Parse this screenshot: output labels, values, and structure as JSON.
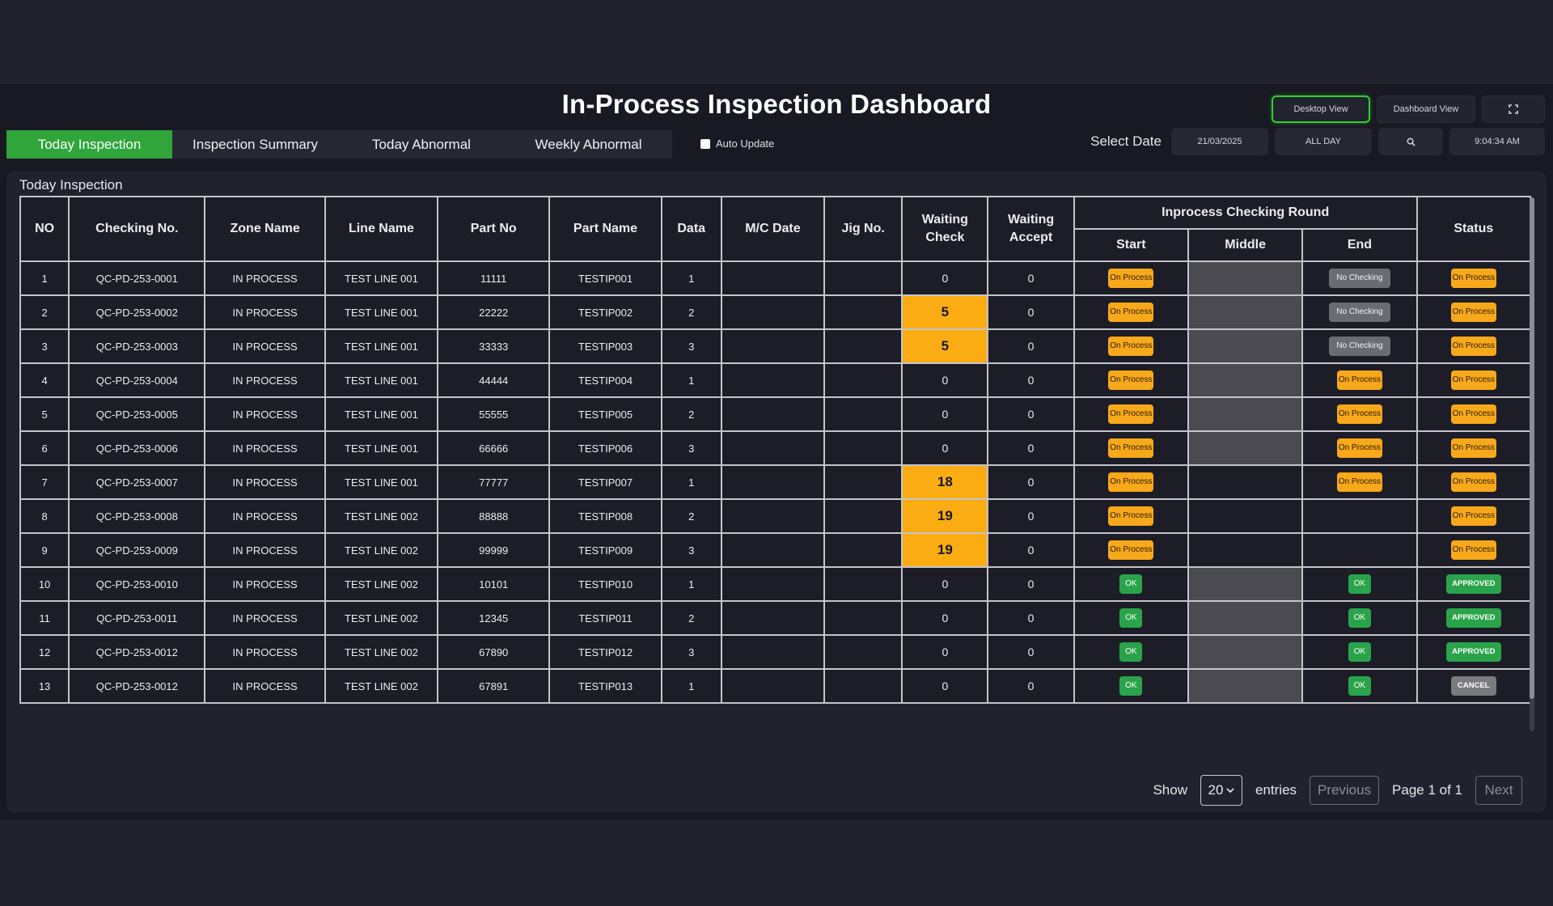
{
  "header": {
    "title": "In-Process Inspection Dashboard",
    "desktop_view_label": "Desktop View",
    "dashboard_view_label": "Dashboard View",
    "fullscreen_icon": "expand-icon"
  },
  "tabs": [
    {
      "label": "Today Inspection",
      "active": true
    },
    {
      "label": "Inspection Summary",
      "active": false
    },
    {
      "label": "Today Abnormal",
      "active": false
    },
    {
      "label": "Weekly Abnormal",
      "active": false
    }
  ],
  "auto_update": {
    "label": "Auto Update",
    "checked": false
  },
  "date_bar": {
    "label": "Select Date",
    "date_value": "21/03/2025",
    "range_value": "ALL DAY",
    "search_icon": "search-icon",
    "time": "9:04:34 AM"
  },
  "panel": {
    "title": "Today Inspection"
  },
  "table": {
    "headers": {
      "no": "NO",
      "checking_no": "Checking No.",
      "zone": "Zone Name",
      "line": "Line Name",
      "part_no": "Part No",
      "part_name": "Part Name",
      "data": "Data",
      "mc_date": "M/C Date",
      "jig_no": "Jig No.",
      "waiting_check_1": "Waiting",
      "waiting_check_2": "Check",
      "waiting_accept_1": "Waiting",
      "waiting_accept_2": "Accept",
      "round": "Inprocess Checking Round",
      "start": "Start",
      "middle": "Middle",
      "end": "End",
      "status": "Status"
    },
    "rows": [
      {
        "no": "1",
        "checking_no": "QC-PD-253-0001",
        "zone": "IN PROCESS",
        "line": "TEST LINE 001",
        "part_no": "11111",
        "part_name": "TESTIP001",
        "data": "1",
        "mc_date": "",
        "jig_no": "",
        "waiting_check": "0",
        "waiting_accept": "0",
        "start": "On Process",
        "middle": "",
        "end": "No Checking",
        "status": "On Process"
      },
      {
        "no": "2",
        "checking_no": "QC-PD-253-0002",
        "zone": "IN PROCESS",
        "line": "TEST LINE 001",
        "part_no": "22222",
        "part_name": "TESTIP002",
        "data": "2",
        "mc_date": "",
        "jig_no": "",
        "waiting_check": "5",
        "waiting_accept": "0",
        "start": "On Process",
        "middle": "",
        "end": "No Checking",
        "status": "On Process"
      },
      {
        "no": "3",
        "checking_no": "QC-PD-253-0003",
        "zone": "IN PROCESS",
        "line": "TEST LINE 001",
        "part_no": "33333",
        "part_name": "TESTIP003",
        "data": "3",
        "mc_date": "",
        "jig_no": "",
        "waiting_check": "5",
        "waiting_accept": "0",
        "start": "On Process",
        "middle": "",
        "end": "No Checking",
        "status": "On Process"
      },
      {
        "no": "4",
        "checking_no": "QC-PD-253-0004",
        "zone": "IN PROCESS",
        "line": "TEST LINE 001",
        "part_no": "44444",
        "part_name": "TESTIP004",
        "data": "1",
        "mc_date": "",
        "jig_no": "",
        "waiting_check": "0",
        "waiting_accept": "0",
        "start": "On Process",
        "middle": "",
        "end": "On Process",
        "status": "On Process"
      },
      {
        "no": "5",
        "checking_no": "QC-PD-253-0005",
        "zone": "IN PROCESS",
        "line": "TEST LINE 001",
        "part_no": "55555",
        "part_name": "TESTIP005",
        "data": "2",
        "mc_date": "",
        "jig_no": "",
        "waiting_check": "0",
        "waiting_accept": "0",
        "start": "On Process",
        "middle": "",
        "end": "On Process",
        "status": "On Process"
      },
      {
        "no": "6",
        "checking_no": "QC-PD-253-0006",
        "zone": "IN PROCESS",
        "line": "TEST LINE 001",
        "part_no": "66666",
        "part_name": "TESTIP006",
        "data": "3",
        "mc_date": "",
        "jig_no": "",
        "waiting_check": "0",
        "waiting_accept": "0",
        "start": "On Process",
        "middle": "",
        "end": "On Process",
        "status": "On Process"
      },
      {
        "no": "7",
        "checking_no": "QC-PD-253-0007",
        "zone": "IN PROCESS",
        "line": "TEST LINE 001",
        "part_no": "77777",
        "part_name": "TESTIP007",
        "data": "1",
        "mc_date": "",
        "jig_no": "",
        "waiting_check": "18",
        "waiting_accept": "0",
        "start": "On Process",
        "middle": "",
        "end": "On Process",
        "status": "On Process"
      },
      {
        "no": "8",
        "checking_no": "QC-PD-253-0008",
        "zone": "IN PROCESS",
        "line": "TEST LINE 002",
        "part_no": "88888",
        "part_name": "TESTIP008",
        "data": "2",
        "mc_date": "",
        "jig_no": "",
        "waiting_check": "19",
        "waiting_accept": "0",
        "start": "On Process",
        "middle": "",
        "end": "",
        "status": "On Process"
      },
      {
        "no": "9",
        "checking_no": "QC-PD-253-0009",
        "zone": "IN PROCESS",
        "line": "TEST LINE 002",
        "part_no": "99999",
        "part_name": "TESTIP009",
        "data": "3",
        "mc_date": "",
        "jig_no": "",
        "waiting_check": "19",
        "waiting_accept": "0",
        "start": "On Process",
        "middle": "",
        "end": "",
        "status": "On Process"
      },
      {
        "no": "10",
        "checking_no": "QC-PD-253-0010",
        "zone": "IN PROCESS",
        "line": "TEST LINE 002",
        "part_no": "10101",
        "part_name": "TESTIP010",
        "data": "1",
        "mc_date": "",
        "jig_no": "",
        "waiting_check": "0",
        "waiting_accept": "0",
        "start": "OK",
        "middle": "",
        "end": "OK",
        "status": "APPROVED"
      },
      {
        "no": "11",
        "checking_no": "QC-PD-253-0011",
        "zone": "IN PROCESS",
        "line": "TEST LINE 002",
        "part_no": "12345",
        "part_name": "TESTIP011",
        "data": "2",
        "mc_date": "",
        "jig_no": "",
        "waiting_check": "0",
        "waiting_accept": "0",
        "start": "OK",
        "middle": "",
        "end": "OK",
        "status": "APPROVED"
      },
      {
        "no": "12",
        "checking_no": "QC-PD-253-0012",
        "zone": "IN PROCESS",
        "line": "TEST LINE 002",
        "part_no": "67890",
        "part_name": "TESTIP012",
        "data": "3",
        "mc_date": "",
        "jig_no": "",
        "waiting_check": "0",
        "waiting_accept": "0",
        "start": "OK",
        "middle": "",
        "end": "OK",
        "status": "APPROVED"
      },
      {
        "no": "13",
        "checking_no": "QC-PD-253-0012",
        "zone": "IN PROCESS",
        "line": "TEST LINE 002",
        "part_no": "67891",
        "part_name": "TESTIP013",
        "data": "1",
        "mc_date": "",
        "jig_no": "",
        "waiting_check": "0",
        "waiting_accept": "0",
        "start": "OK",
        "middle": "",
        "end": "OK",
        "status": "CANCEL"
      }
    ],
    "middle_grey_rows": [
      1,
      2,
      3,
      4,
      5,
      6,
      10,
      11,
      12,
      13
    ]
  },
  "pagination": {
    "show_label": "Show",
    "entries_value": "20",
    "entries_label": "entries",
    "previous_label": "Previous",
    "page_info": "Page 1 of 1",
    "next_label": "Next"
  },
  "colors": {
    "accent_green": "#2fa53a",
    "waiting_highlight": "#fbac12",
    "on_process": "#f7a81b",
    "ok_green": "#2aa34a",
    "no_checking_grey": "#6b6b72",
    "background": "#181922"
  }
}
